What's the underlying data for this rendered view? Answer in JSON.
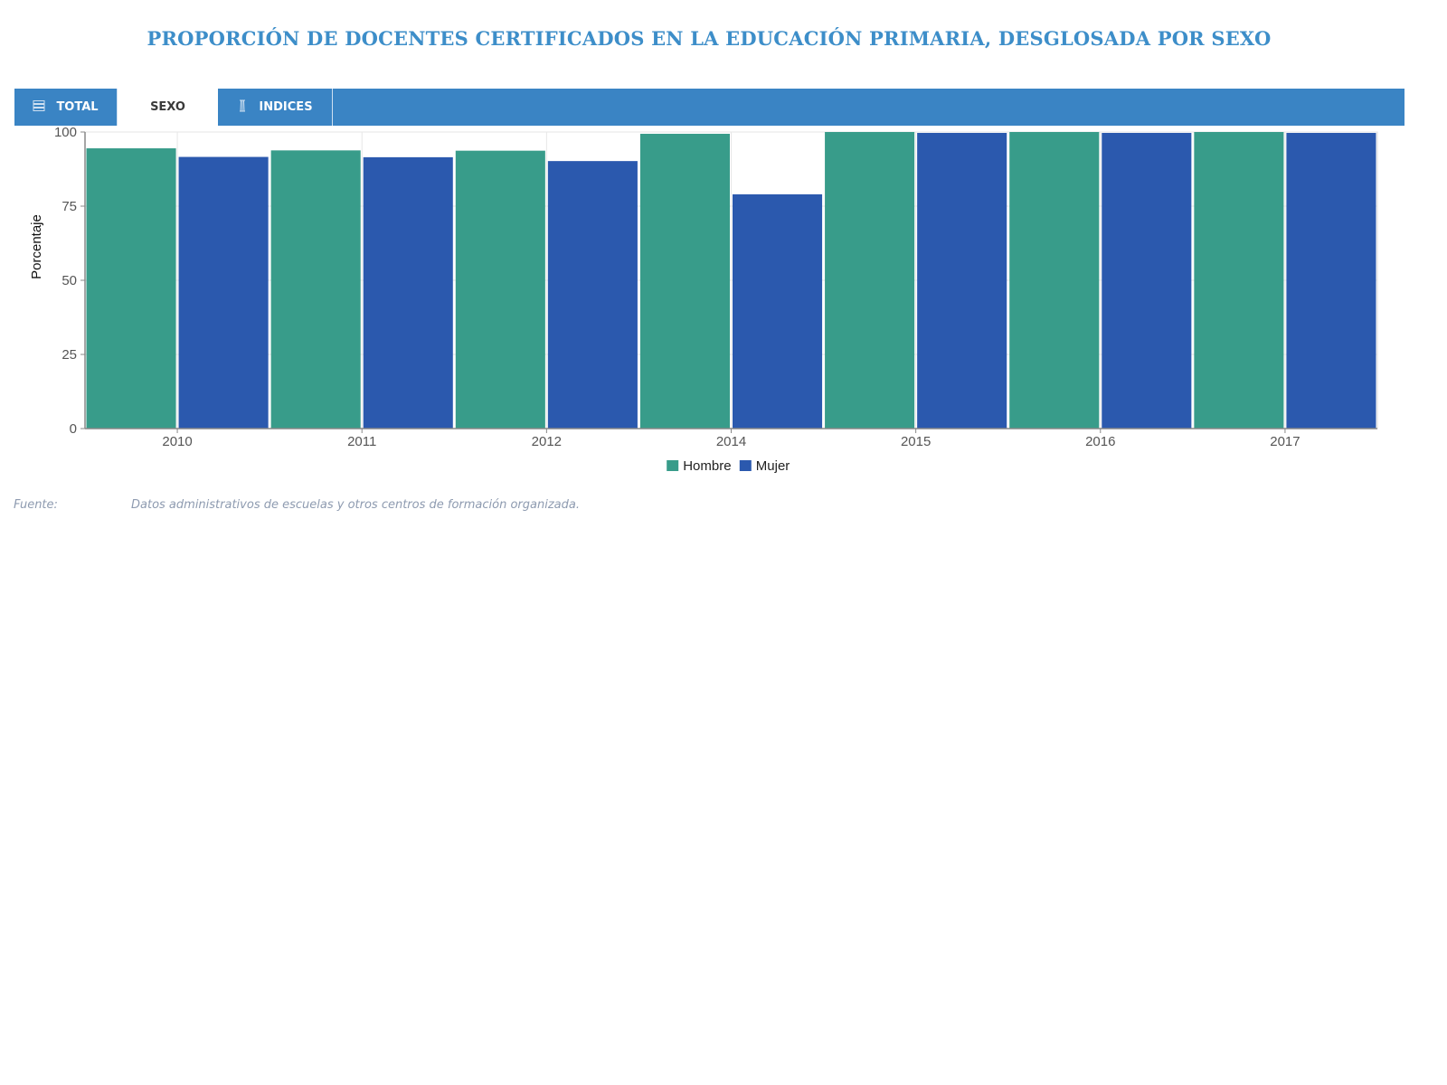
{
  "title": "PROPORCIÓN DE DOCENTES CERTIFICADOS EN LA EDUCACIÓN PRIMARIA, DESGLOSADA POR SEXO",
  "tabs": [
    {
      "label": "TOTAL",
      "icon": "list-icon",
      "active": false
    },
    {
      "label": "SEXO",
      "icon": "",
      "active": true
    },
    {
      "label": "INDICES",
      "icon": "cursor-icon",
      "active": false
    }
  ],
  "chart_data": {
    "type": "bar",
    "categories": [
      "2010",
      "2011",
      "2012",
      "2014",
      "2015",
      "2016",
      "2017"
    ],
    "series": [
      {
        "name": "Hombre",
        "color": "#389c8a",
        "values": [
          94.5,
          93.8,
          93.7,
          99.4,
          100,
          100,
          100
        ]
      },
      {
        "name": "Mujer",
        "color": "#2b59ae",
        "values": [
          91.6,
          91.5,
          90.2,
          79.0,
          99.7,
          99.7,
          99.7
        ]
      }
    ],
    "ylabel": "Porcentaje",
    "ylim": [
      0,
      100
    ],
    "yticks": [
      0,
      25,
      50,
      75,
      100
    ],
    "grid": true,
    "legend_position": "bottom-center"
  },
  "source": {
    "label": "Fuente:",
    "text": "Datos administrativos de escuelas y otros centros de formación organizada."
  }
}
